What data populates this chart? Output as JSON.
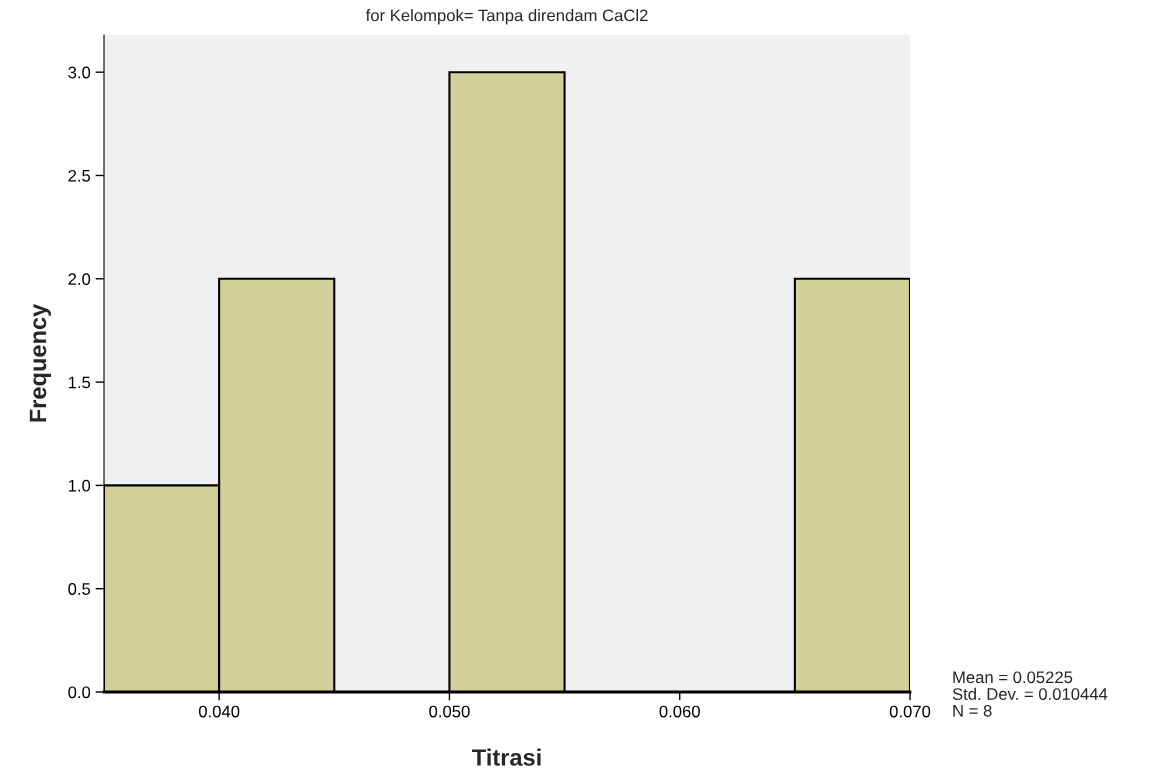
{
  "chart_data": {
    "type": "histogram",
    "title": "for Kelompok= Tanpa direndam CaCl2",
    "xlabel": "Titrasi",
    "ylabel": "Frequency",
    "bins": [
      0.035,
      0.04,
      0.045,
      0.05,
      0.055,
      0.06,
      0.065,
      0.07
    ],
    "values": [
      1,
      2,
      0,
      3,
      0,
      0,
      2
    ],
    "color": "#d3cf98",
    "xlim": [
      0.035,
      0.07
    ],
    "xticks": [
      {
        "value": 0.04,
        "label": "0.040"
      },
      {
        "value": 0.05,
        "label": "0.050"
      },
      {
        "value": 0.06,
        "label": "0.060"
      },
      {
        "value": 0.07,
        "label": "0.070"
      }
    ],
    "ylim": [
      0,
      3.18
    ],
    "yticks": [
      {
        "value": 0,
        "label": "0.0"
      },
      {
        "value": 0.5,
        "label": "0.5"
      },
      {
        "value": 1,
        "label": "1.0"
      },
      {
        "value": 1.5,
        "label": "1.5"
      },
      {
        "value": 2,
        "label": "2.0"
      },
      {
        "value": 2.5,
        "label": "2.5"
      },
      {
        "value": 3,
        "label": "3.0"
      }
    ],
    "grid": false,
    "annotations": [
      "Mean = 0.05225\nStd. Dev. = 0.010444\nN = 8"
    ]
  }
}
